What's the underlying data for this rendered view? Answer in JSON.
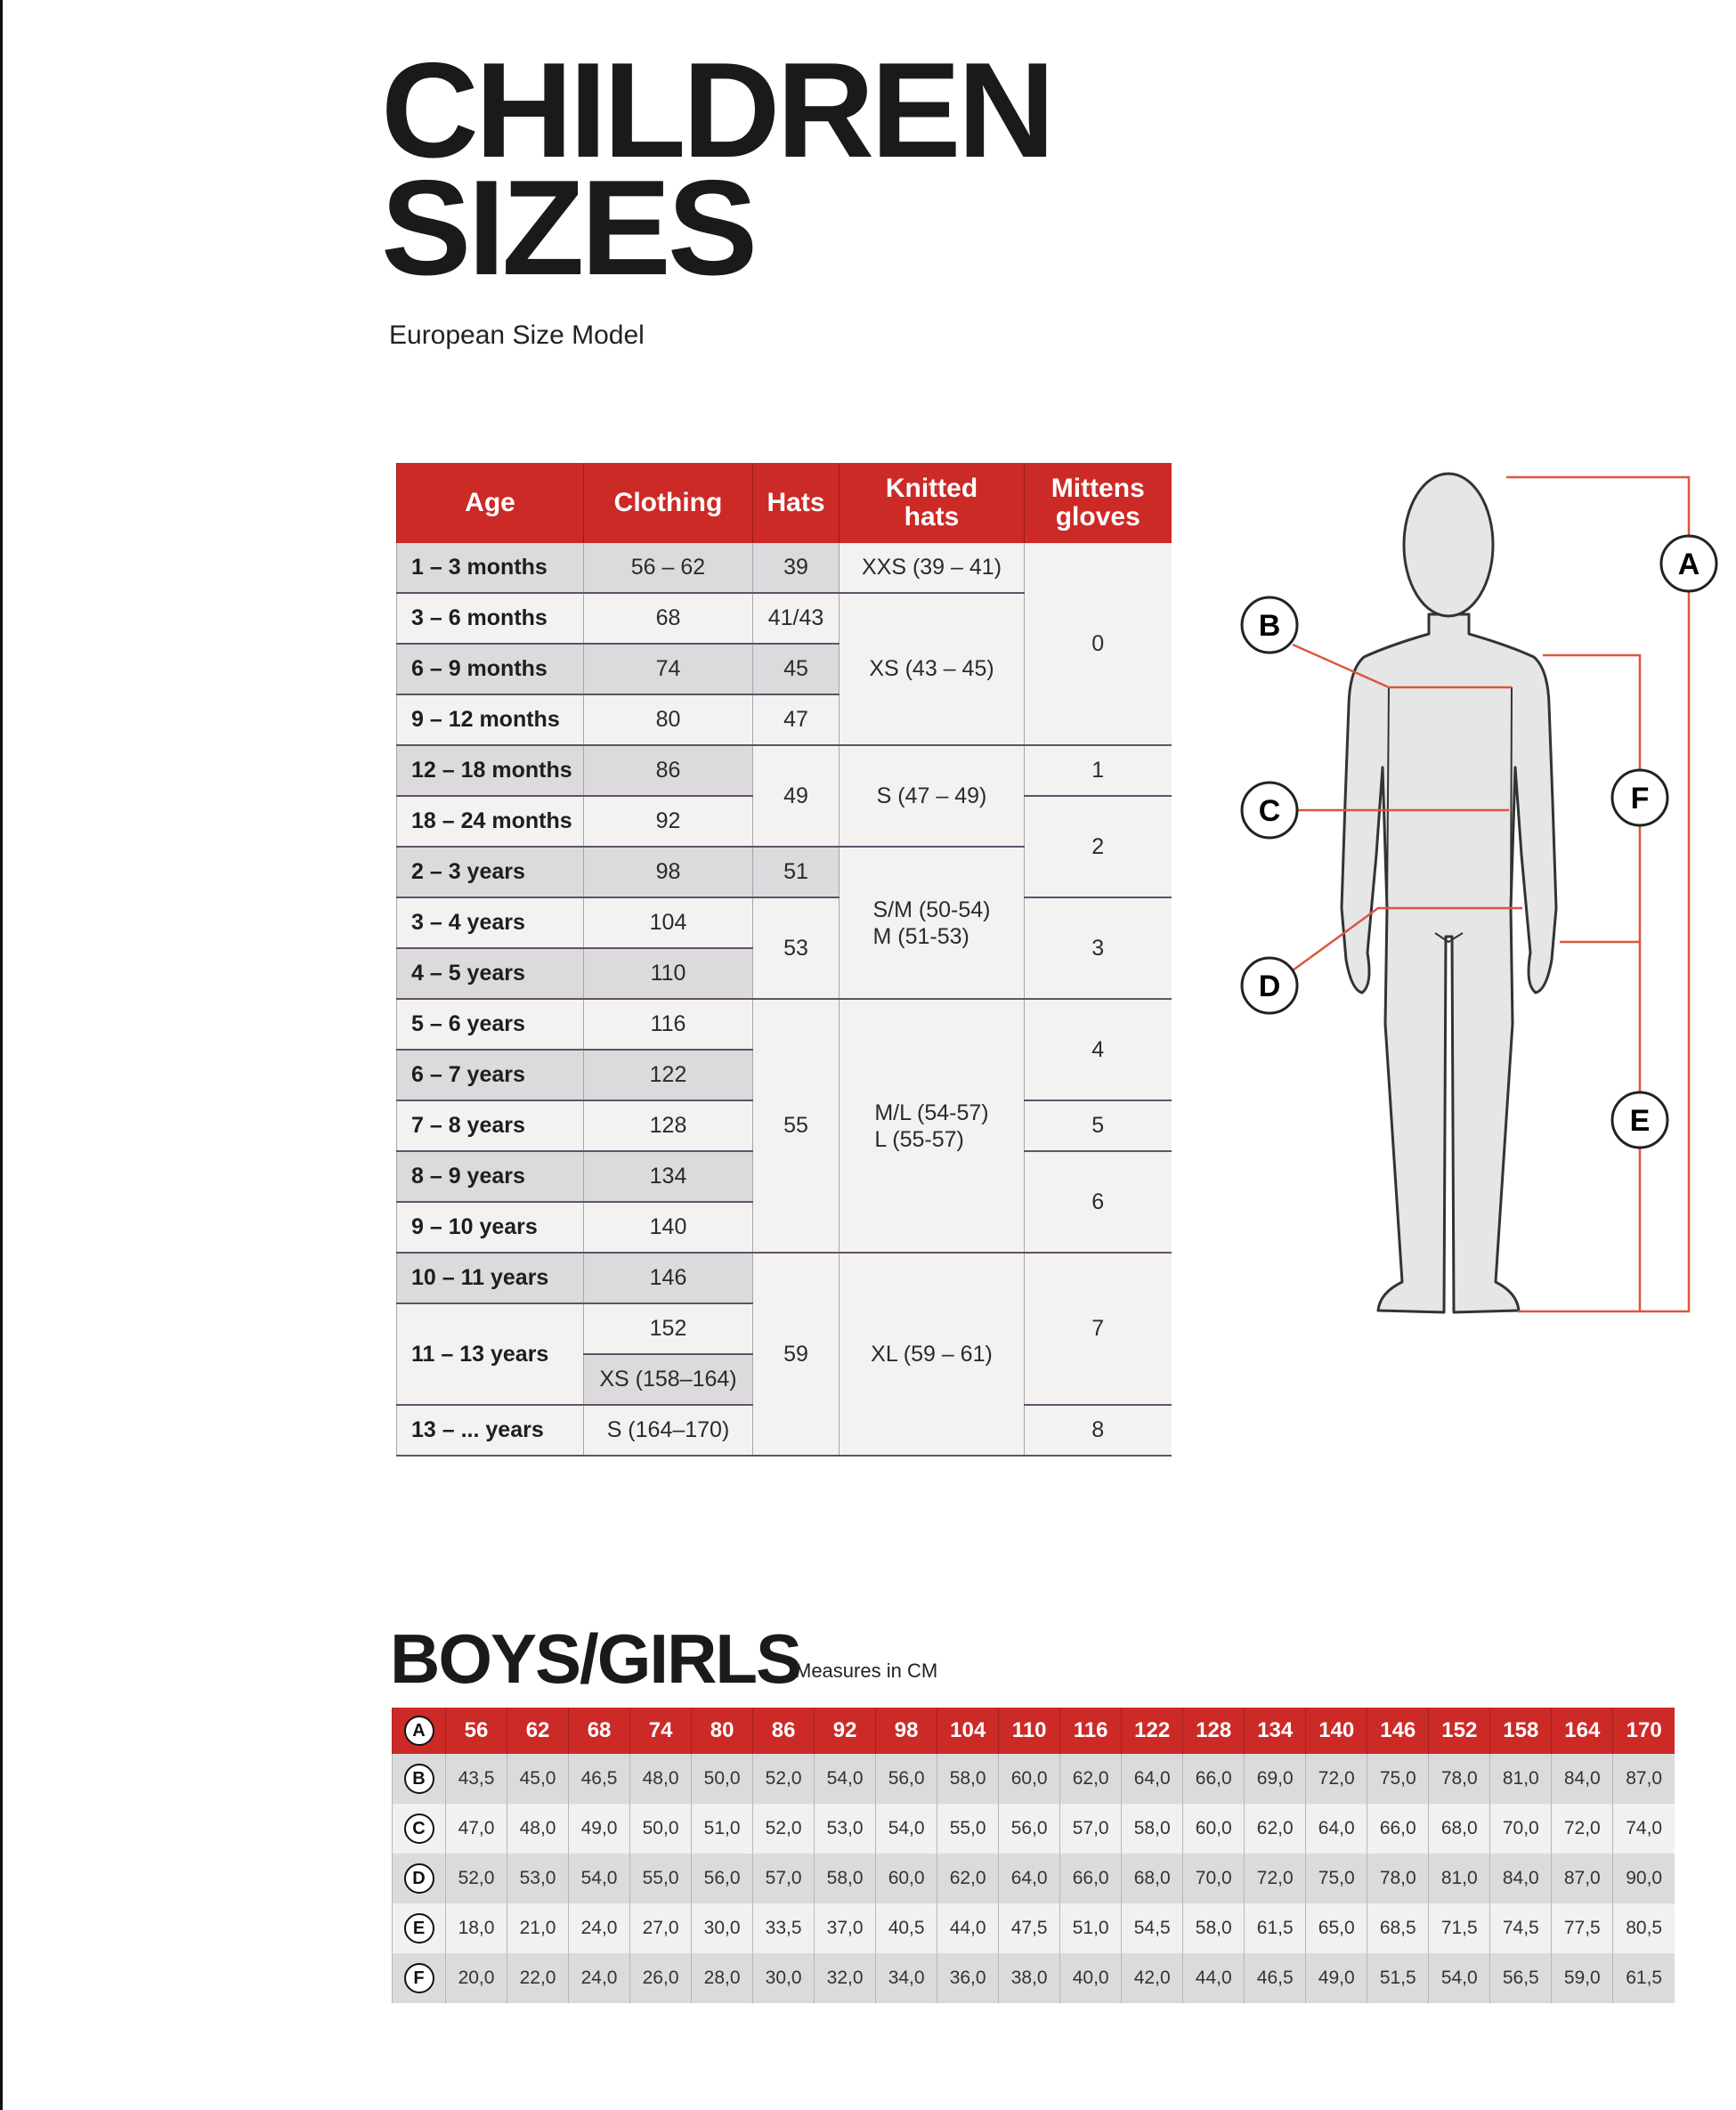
{
  "title_lines": [
    "CHILDREN",
    "SIZES"
  ],
  "subtitle": "European Size Model",
  "size_table": {
    "headers": [
      "Age",
      "Clothing",
      "Hats",
      "Knitted\nhats",
      "Mittens\ngloves"
    ],
    "rows": [
      {
        "age": "1 – 3 months",
        "clothing": "56 – 62",
        "hats": {
          "text": "39",
          "span": 1
        },
        "knitted": {
          "text": "XXS (39 – 41)",
          "span": 1
        },
        "mittens": {
          "text": "0",
          "span": 4
        }
      },
      {
        "age": "3 – 6 months",
        "clothing": "68",
        "hats": {
          "text": "41/43",
          "span": 1
        },
        "knitted": {
          "text": "XS (43 – 45)",
          "span": 3
        }
      },
      {
        "age": "6 – 9 months",
        "clothing": "74",
        "hats": {
          "text": "45",
          "span": 1
        }
      },
      {
        "age": "9 – 12 months",
        "clothing": "80",
        "hats": {
          "text": "47",
          "span": 1
        }
      },
      {
        "age": "12 – 18 months",
        "clothing": "86",
        "hats": {
          "text": "49",
          "span": 2
        },
        "knitted": {
          "text": "S (47 – 49)",
          "span": 2
        },
        "mittens": {
          "text": "1",
          "span": 1
        }
      },
      {
        "age": "18 – 24 months",
        "clothing": "92",
        "mittens": {
          "text": "2",
          "span": 2
        }
      },
      {
        "age": "2 – 3 years",
        "clothing": "98",
        "hats": {
          "text": "51",
          "span": 1
        },
        "knitted": {
          "text": "S/M (50-54)\nM (51-53)",
          "span": 3
        }
      },
      {
        "age": "3 – 4 years",
        "clothing": "104",
        "hats": {
          "text": "53",
          "span": 2
        },
        "mittens": {
          "text": "3",
          "span": 2
        }
      },
      {
        "age": "4 – 5 years",
        "clothing": "110"
      },
      {
        "age": "5 – 6 years",
        "clothing": "116",
        "hats": {
          "text": "55",
          "span": 5
        },
        "knitted": {
          "text": "M/L (54-57)\nL (55-57)",
          "span": 5
        },
        "mittens": {
          "text": "4",
          "span": 2
        }
      },
      {
        "age": "6 – 7 years",
        "clothing": "122"
      },
      {
        "age": "7 – 8 years",
        "clothing": "128",
        "mittens": {
          "text": "5",
          "span": 1
        }
      },
      {
        "age": "8 – 9 years",
        "clothing": "134",
        "mittens": {
          "text": "6",
          "span": 2
        }
      },
      {
        "age": "9 – 10 years",
        "clothing": "140"
      },
      {
        "age": "10 – 11 years",
        "clothing": "146",
        "hats": {
          "text": "59",
          "span": 4
        },
        "knitted": {
          "text": "XL (59 – 61)",
          "span": 4
        },
        "mittens": {
          "text": "7",
          "span": 3
        }
      },
      {
        "age": "11 – 13 years",
        "age_span": 2,
        "clothing": "152"
      },
      {
        "clothing": "XS (158–164)"
      },
      {
        "age": "13 – ... years",
        "clothing": "S (164–170)",
        "mittens": {
          "text": "8",
          "span": 1
        }
      }
    ]
  },
  "figure": {
    "labels": {
      "A": "A",
      "B": "B",
      "C": "C",
      "D": "D",
      "E": "E",
      "F": "F"
    },
    "icon": "child-body-silhouette"
  },
  "measures": {
    "title": "BOYS/GIRLS",
    "unit_note": "Measures in CM",
    "rows": [
      {
        "label": "A",
        "values": [
          "56",
          "62",
          "68",
          "74",
          "80",
          "86",
          "92",
          "98",
          "104",
          "110",
          "116",
          "122",
          "128",
          "134",
          "140",
          "146",
          "152",
          "158",
          "164",
          "170"
        ]
      },
      {
        "label": "B",
        "values": [
          "43,5",
          "45,0",
          "46,5",
          "48,0",
          "50,0",
          "52,0",
          "54,0",
          "56,0",
          "58,0",
          "60,0",
          "62,0",
          "64,0",
          "66,0",
          "69,0",
          "72,0",
          "75,0",
          "78,0",
          "81,0",
          "84,0",
          "87,0"
        ]
      },
      {
        "label": "C",
        "values": [
          "47,0",
          "48,0",
          "49,0",
          "50,0",
          "51,0",
          "52,0",
          "53,0",
          "54,0",
          "55,0",
          "56,0",
          "57,0",
          "58,0",
          "60,0",
          "62,0",
          "64,0",
          "66,0",
          "68,0",
          "70,0",
          "72,0",
          "74,0"
        ]
      },
      {
        "label": "D",
        "values": [
          "52,0",
          "53,0",
          "54,0",
          "55,0",
          "56,0",
          "57,0",
          "58,0",
          "60,0",
          "62,0",
          "64,0",
          "66,0",
          "68,0",
          "70,0",
          "72,0",
          "75,0",
          "78,0",
          "81,0",
          "84,0",
          "87,0",
          "90,0"
        ]
      },
      {
        "label": "E",
        "values": [
          "18,0",
          "21,0",
          "24,0",
          "27,0",
          "30,0",
          "33,5",
          "37,0",
          "40,5",
          "44,0",
          "47,5",
          "51,0",
          "54,5",
          "58,0",
          "61,5",
          "65,0",
          "68,5",
          "71,5",
          "74,5",
          "77,5",
          "80,5"
        ]
      },
      {
        "label": "F",
        "values": [
          "20,0",
          "22,0",
          "24,0",
          "26,0",
          "28,0",
          "30,0",
          "32,0",
          "34,0",
          "36,0",
          "38,0",
          "40,0",
          "42,0",
          "44,0",
          "46,5",
          "49,0",
          "51,5",
          "54,0",
          "56,5",
          "59,0",
          "61,5"
        ]
      }
    ]
  },
  "colors": {
    "accent_red": "#cc2a27",
    "row_gray": "#dcdadc",
    "row_light": "#f3f2f1",
    "guide_line": "#d9573f"
  }
}
